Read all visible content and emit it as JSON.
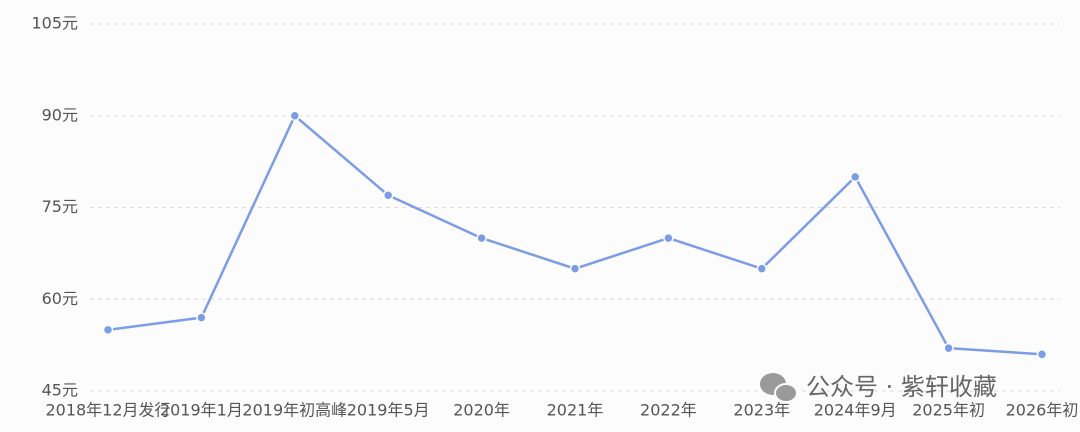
{
  "chart_data": {
    "type": "line",
    "categories": [
      "2018年12月发行",
      "2019年1月",
      "2019年初高峰",
      "2019年5月",
      "2020年",
      "2021年",
      "2022年",
      "2023年",
      "2024年9月",
      "2025年初",
      "2026年初"
    ],
    "series": [
      {
        "color": "#7b9de6",
        "values": [
          55,
          57,
          90,
          77,
          70,
          65,
          70,
          65,
          80,
          52,
          51
        ]
      }
    ],
    "ylim": [
      45,
      105
    ],
    "yticks": [
      {
        "value": 45,
        "label": "45元"
      },
      {
        "value": 60,
        "label": "60元"
      },
      {
        "value": 75,
        "label": "75元"
      },
      {
        "value": 90,
        "label": "90元"
      },
      {
        "value": 105,
        "label": "105元"
      }
    ],
    "grid": true,
    "watermark": "公众号 · 紫轩收藏"
  }
}
